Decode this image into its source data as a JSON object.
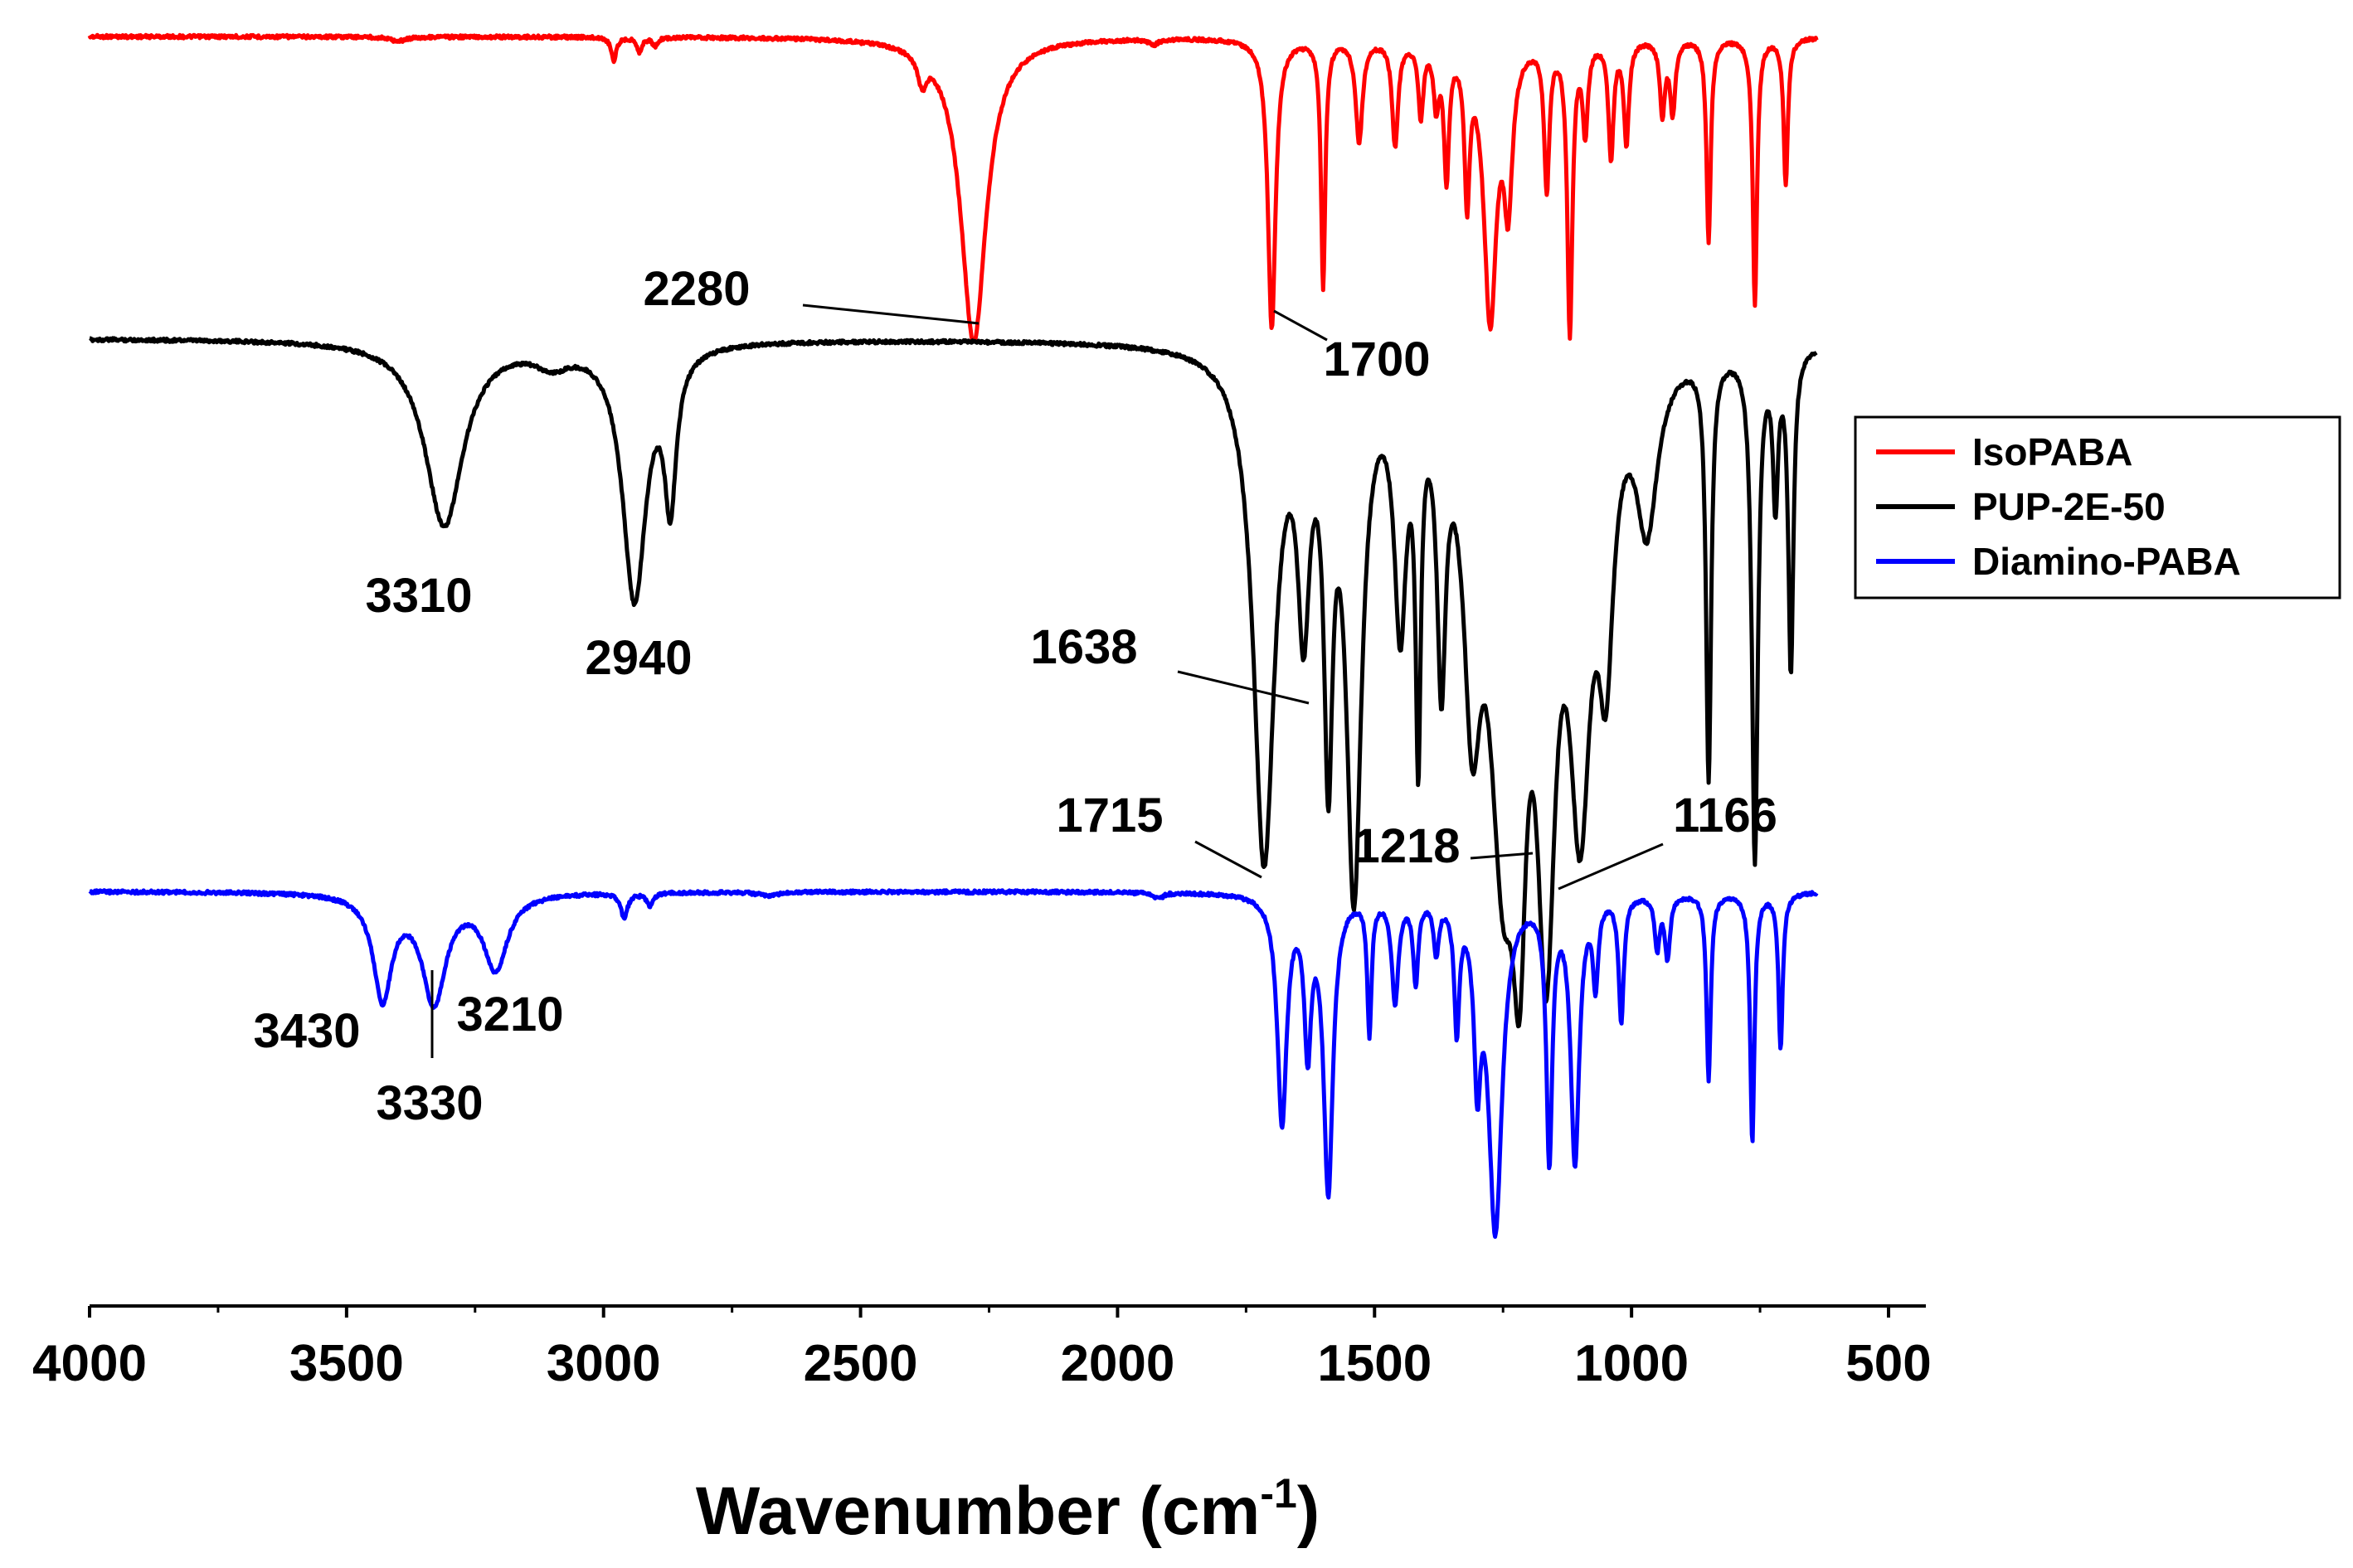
{
  "chart_data": {
    "type": "line",
    "title": "",
    "xlabel": "Wavenumber (cm",
    "xlabel_sup": "-1",
    "xlabel_close": ")",
    "ylabel": "",
    "xlim": [
      4000,
      450
    ],
    "x_inverted": true,
    "grid": false,
    "y_axis_shown": false,
    "xticks": [
      4000,
      3500,
      3000,
      2500,
      2000,
      1500,
      1000,
      500
    ],
    "xtick_labels": [
      "4000",
      "3500",
      "3000",
      "2500",
      "2000",
      "1500",
      "1000",
      "500"
    ],
    "legend": {
      "placement": "right",
      "entries": [
        {
          "name": "IsoPABA",
          "color": "#ff0000"
        },
        {
          "name": "PUP-2E-50",
          "color": "#000000"
        },
        {
          "name": "Diamino-PABA",
          "color": "#0000ff"
        }
      ]
    },
    "series": [
      {
        "name": "IsoPABA",
        "color": "#ff0000",
        "baseline": 100,
        "end_x": 640,
        "peaks": [
          [
            3400,
            1.5,
            18
          ],
          [
            2980,
            8,
            6
          ],
          [
            2930,
            5,
            6
          ],
          [
            2900,
            3,
            6
          ],
          [
            2380,
            10,
            10
          ],
          [
            2280,
            105,
            30
          ],
          [
            1930,
            2,
            10
          ],
          [
            1700,
            100,
            9
          ],
          [
            1600,
            85,
            5
          ],
          [
            1530,
            35,
            8
          ],
          [
            1460,
            36,
            7
          ],
          [
            1410,
            25,
            6
          ],
          [
            1380,
            20,
            6
          ],
          [
            1360,
            45,
            6
          ],
          [
            1320,
            50,
            6
          ],
          [
            1275,
            95,
            15
          ],
          [
            1240,
            50,
            10
          ],
          [
            1165,
            50,
            6
          ],
          [
            1120,
            100,
            6
          ],
          [
            1090,
            30,
            6
          ],
          [
            1040,
            40,
            6
          ],
          [
            1010,
            35,
            6
          ],
          [
            940,
            25,
            6
          ],
          [
            920,
            25,
            6
          ],
          [
            850,
            70,
            5
          ],
          [
            760,
            92,
            5
          ],
          [
            700,
            50,
            5
          ]
        ]
      },
      {
        "name": "PUP-2E-50",
        "color": "#000000",
        "baseline": 100,
        "end_x": 640,
        "peaks": [
          [
            3310,
            64,
            45
          ],
          [
            3100,
            6,
            40
          ],
          [
            2940,
            88,
            28
          ],
          [
            2870,
            50,
            14
          ],
          [
            1715,
            175,
            25
          ],
          [
            1638,
            80,
            14
          ],
          [
            1590,
            125,
            10
          ],
          [
            1540,
            180,
            18
          ],
          [
            1450,
            85,
            14
          ],
          [
            1415,
            120,
            6
          ],
          [
            1370,
            95,
            10
          ],
          [
            1310,
            100,
            20
          ],
          [
            1250,
            150,
            32
          ],
          [
            1218,
            120,
            16
          ],
          [
            1166,
            175,
            22
          ],
          [
            1100,
            140,
            25
          ],
          [
            1050,
            85,
            18
          ],
          [
            970,
            55,
            25
          ],
          [
            850,
            145,
            6
          ],
          [
            760,
            175,
            7
          ],
          [
            720,
            50,
            6
          ],
          [
            690,
            110,
            6
          ]
        ]
      },
      {
        "name": "Diamino-PABA",
        "color": "#0000ff",
        "baseline": 100,
        "end_x": 640,
        "peaks": [
          [
            3430,
            50,
            22
          ],
          [
            3330,
            52,
            28
          ],
          [
            3210,
            36,
            28
          ],
          [
            2960,
            12,
            8
          ],
          [
            2910,
            6,
            8
          ],
          [
            2680,
            2,
            20
          ],
          [
            1920,
            3,
            10
          ],
          [
            1680,
            110,
            11
          ],
          [
            1630,
            70,
            8
          ],
          [
            1590,
            142,
            11
          ],
          [
            1510,
            65,
            5
          ],
          [
            1460,
            50,
            8
          ],
          [
            1420,
            40,
            6
          ],
          [
            1380,
            25,
            6
          ],
          [
            1340,
            60,
            6
          ],
          [
            1300,
            75,
            8
          ],
          [
            1265,
            160,
            16
          ],
          [
            1160,
            125,
            7
          ],
          [
            1110,
            128,
            10
          ],
          [
            1070,
            40,
            6
          ],
          [
            1020,
            60,
            6
          ],
          [
            950,
            25,
            6
          ],
          [
            930,
            30,
            6
          ],
          [
            850,
            90,
            5
          ],
          [
            765,
            120,
            5
          ],
          [
            710,
            75,
            5
          ]
        ]
      }
    ],
    "annotations": [
      {
        "label": "2280",
        "series": "IsoPABA",
        "x": 2280
      },
      {
        "label": "1700",
        "series": "IsoPABA",
        "x": 1700
      },
      {
        "label": "3310",
        "series": "PUP-2E-50",
        "x": 3310
      },
      {
        "label": "2940",
        "series": "PUP-2E-50",
        "x": 2940
      },
      {
        "label": "1638",
        "series": "PUP-2E-50",
        "x": 1638
      },
      {
        "label": "1715",
        "series": "PUP-2E-50",
        "x": 1715
      },
      {
        "label": "1218",
        "series": "PUP-2E-50",
        "x": 1218
      },
      {
        "label": "1166",
        "series": "PUP-2E-50",
        "x": 1166
      },
      {
        "label": "3430",
        "series": "Diamino-PABA",
        "x": 3430
      },
      {
        "label": "3330",
        "series": "Diamino-PABA",
        "x": 3330
      },
      {
        "label": "3210",
        "series": "Diamino-PABA",
        "x": 3210
      }
    ]
  }
}
